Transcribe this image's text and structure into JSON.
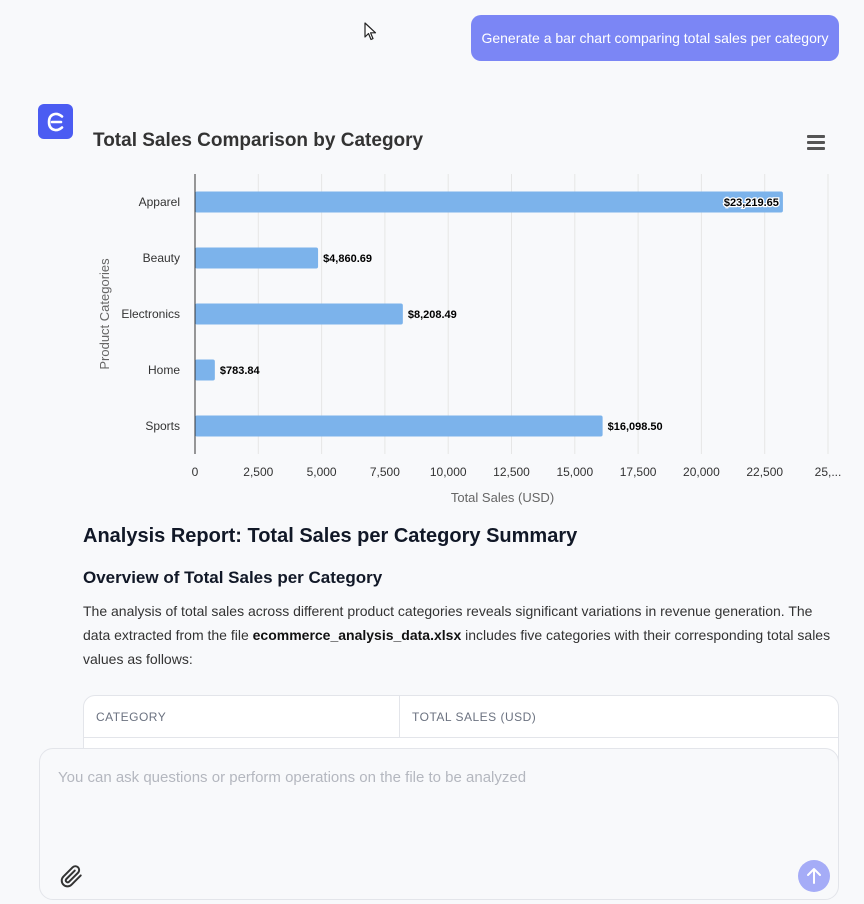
{
  "user_message": "Generate a bar chart comparing total sales per category",
  "chart_data": {
    "type": "bar",
    "orientation": "horizontal",
    "title": "Total Sales Comparison by Category",
    "categories": [
      "Apparel",
      "Beauty",
      "Electronics",
      "Home",
      "Sports"
    ],
    "values": [
      23219.65,
      4860.69,
      8208.49,
      783.84,
      16098.5
    ],
    "data_labels": [
      "$23,219.65",
      "$4,860.69",
      "$8,208.49",
      "$783.84",
      "$16,098.50"
    ],
    "xlabel": "Total Sales (USD)",
    "ylabel": "Product Categories",
    "xlim": [
      0,
      25000
    ],
    "x_ticks": [
      "0",
      "2,500",
      "5,000",
      "7,500",
      "10,000",
      "12,500",
      "15,000",
      "17,500",
      "20,000",
      "22,500",
      "25,..."
    ],
    "bar_color": "#7cb3eb",
    "grid": true
  },
  "report": {
    "heading": "Analysis Report: Total Sales per Category Summary",
    "subheading": "Overview of Total Sales per Category",
    "para_before": "The analysis of total sales across different product categories reveals significant variations in revenue generation. The data extracted from the file ",
    "file_name": "ecommerce_analysis_data.xlsx",
    "para_after": " includes five categories with their corresponding total sales values as follows:"
  },
  "table": {
    "col1": "CATEGORY",
    "col2": "TOTAL SALES (USD)"
  },
  "composer": {
    "placeholder": "You can ask questions or perform operations on the file to be analyzed"
  },
  "colors": {
    "accent": "#4b5cf2",
    "user_bubble": "#7b86f5",
    "send_button": "#a5acf7"
  }
}
